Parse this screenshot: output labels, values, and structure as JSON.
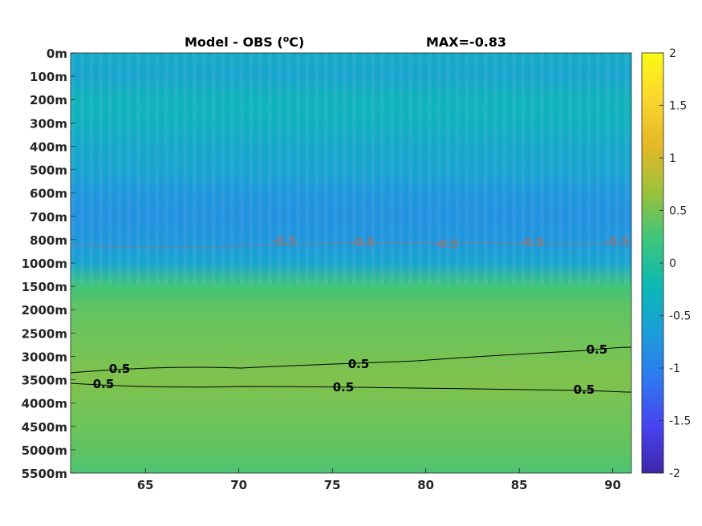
{
  "chart_data": {
    "type": "heatmap",
    "title": "Model - OBS (°C)",
    "title_parts": {
      "prefix": "Model - OBS (",
      "superscript": "o",
      "suffix": "C)"
    },
    "annotation": "MAX=-0.83",
    "x_ticks": [
      "65",
      "70",
      "75",
      "80",
      "85",
      "90"
    ],
    "x_tick_values": [
      65,
      70,
      75,
      80,
      85,
      90
    ],
    "xlim": [
      61,
      91
    ],
    "y_ticks": [
      "0m",
      "100m",
      "200m",
      "300m",
      "400m",
      "500m",
      "600m",
      "700m",
      "800m",
      "1000m",
      "1500m",
      "2000m",
      "2500m",
      "3000m",
      "3500m",
      "4000m",
      "4500m",
      "5000m",
      "5500m"
    ],
    "colorbar": {
      "ticks": [
        "2",
        "1.5",
        "1",
        "0.5",
        "0",
        "-0.5",
        "-1",
        "-1.5",
        "-2"
      ],
      "range": [
        -2,
        2
      ],
      "colormap": "parula",
      "stops": [
        "#3e26a8",
        "#4743f1",
        "#2f78f0",
        "#1c9dd9",
        "#0cb8b4",
        "#3cc57c",
        "#99c13c",
        "#e4b827",
        "#fad52e",
        "#f9fb15"
      ]
    },
    "depth_profile": {
      "depth_labels": [
        "0m",
        "100m",
        "200m",
        "300m",
        "400m",
        "500m",
        "600m",
        "700m",
        "800m",
        "1000m",
        "1500m",
        "2000m",
        "2500m",
        "3000m",
        "3500m",
        "4000m",
        "4500m",
        "5000m",
        "5500m"
      ],
      "values": [
        -0.45,
        -0.55,
        -0.3,
        -0.35,
        -0.5,
        -0.55,
        -0.75,
        -0.8,
        -0.75,
        -0.55,
        0.25,
        0.4,
        0.45,
        0.5,
        0.55,
        0.5,
        0.45,
        0.4,
        0.3
      ]
    },
    "contours": [
      {
        "level": "0.5",
        "color": "#000000",
        "labels": [
          "0.5",
          "0.5",
          "0.5"
        ]
      },
      {
        "level": "0.5",
        "color": "#000000",
        "labels": [
          "0.5",
          "0.5",
          "0.5"
        ]
      },
      {
        "level": "-0.5",
        "color": "#8a7a80",
        "labels": [
          "-0.5",
          "-0.5",
          "-0.5",
          "-0.5",
          "-0.5"
        ]
      }
    ]
  }
}
